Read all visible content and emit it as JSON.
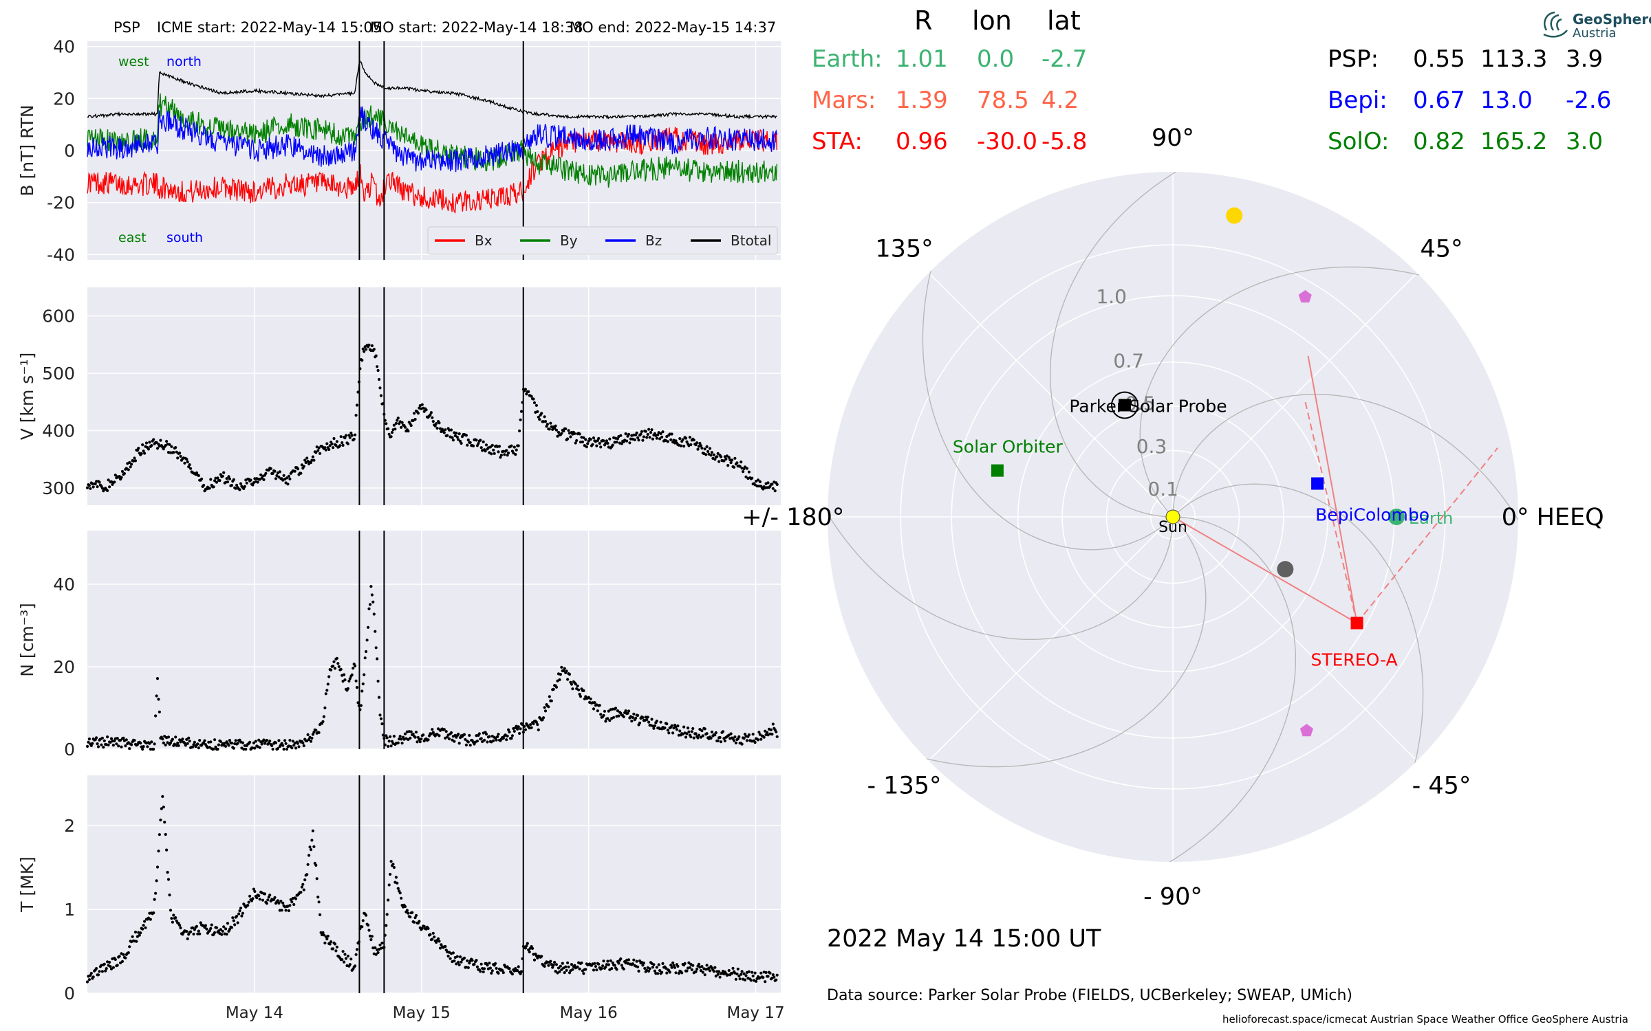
{
  "header": {
    "spacecraft": "PSP",
    "icme_start": "ICME start: 2022-May-14 15:05",
    "mo_start": "MO start: 2022-May-14 18:38",
    "mo_end": "MO end: 2022-May-15 14:37"
  },
  "logo": {
    "line1": "GeoSphere",
    "line2": "Austria"
  },
  "position_table": {
    "columns": [
      "R",
      "lon",
      "lat"
    ],
    "left": [
      {
        "name": "Earth:",
        "R": "1.01",
        "lon": "0.0",
        "lat": "-2.7",
        "color": "#3cb371"
      },
      {
        "name": "Mars:",
        "R": "1.39",
        "lon": "78.5",
        "lat": "4.2",
        "color": "#ff6347"
      },
      {
        "name": "STA:",
        "R": "0.96",
        "lon": "-30.0",
        "lat": "-5.8",
        "color": "#ff0000"
      }
    ],
    "right": [
      {
        "name": "PSP:",
        "R": "0.55",
        "lon": "113.3",
        "lat": "3.9",
        "color": "#000000"
      },
      {
        "name": "Bepi:",
        "R": "0.67",
        "lon": "13.0",
        "lat": "-2.6",
        "color": "#0000ff"
      },
      {
        "name": "SolO:",
        "R": "0.82",
        "lon": "165.2",
        "lat": "3.0",
        "color": "#008000"
      }
    ]
  },
  "footer": {
    "timestamp": "2022 May 14  15:00 UT",
    "data_source": "Data source: Parker Solar Probe (FIELDS, UCBerkeley; SWEAP, UMich)",
    "credits": "helioforecast.space/icmecat   Austrian Space Weather Office   GeoSphere Austria"
  },
  "chart_data": [
    {
      "type": "line",
      "ylabel": "B [nT] RTN",
      "ylim": [
        -42,
        42
      ],
      "yticks": [
        -40,
        -20,
        0,
        20,
        40
      ],
      "xlim_days": [
        13.0,
        17.15
      ],
      "xticks": [
        {
          "label": "May 14",
          "x": 14
        },
        {
          "label": "May 15",
          "x": 15
        },
        {
          "label": "May 16",
          "x": 16
        },
        {
          "label": "May 17",
          "x": 17
        }
      ],
      "event_lines": [
        14.628,
        14.776,
        15.609
      ],
      "direction_labels": [
        {
          "text": "west",
          "color": "#008000"
        },
        {
          "text": "north",
          "color": "#0000ff"
        },
        {
          "text": "east",
          "color": "#008000"
        },
        {
          "text": "south",
          "color": "#0000ff"
        }
      ],
      "legend_position": "lower-right",
      "series": [
        {
          "name": "Bx",
          "color": "#ff0000",
          "x": [
            13.0,
            13.3,
            13.42,
            13.43,
            13.6,
            13.8,
            14.0,
            14.2,
            14.4,
            14.6,
            14.63,
            14.66,
            14.7,
            14.75,
            14.8,
            14.9,
            15.0,
            15.2,
            15.4,
            15.6,
            15.7,
            15.9,
            16.1,
            16.3,
            16.5,
            16.7,
            16.9,
            17.15
          ],
          "y": [
            -12,
            -13,
            -13,
            -14,
            -16,
            -14,
            -16,
            -13,
            -13,
            -15,
            -8,
            -18,
            -12,
            -20,
            -10,
            -16,
            -18,
            -20,
            -19,
            -16,
            -4,
            3,
            4,
            3,
            5,
            2,
            4,
            3
          ]
        },
        {
          "name": "By",
          "color": "#008000",
          "x": [
            13.0,
            13.2,
            13.42,
            13.43,
            13.6,
            13.8,
            14.0,
            14.2,
            14.4,
            14.6,
            14.63,
            14.7,
            14.78,
            14.9,
            15.0,
            15.2,
            15.4,
            15.6,
            15.7,
            15.9,
            16.1,
            16.3,
            16.5,
            16.7,
            16.9,
            17.15
          ],
          "y": [
            5,
            3,
            5,
            18,
            12,
            8,
            6,
            10,
            8,
            4,
            10,
            14,
            10,
            5,
            2,
            -2,
            -4,
            0,
            -5,
            -8,
            -10,
            -8,
            -6,
            -9,
            -8,
            -8
          ]
        },
        {
          "name": "Bz",
          "color": "#0000ff",
          "x": [
            13.0,
            13.2,
            13.42,
            13.43,
            13.6,
            13.8,
            14.0,
            14.2,
            14.4,
            14.6,
            14.63,
            14.7,
            14.78,
            14.9,
            15.0,
            15.2,
            15.4,
            15.6,
            15.7,
            15.9,
            16.1,
            16.3,
            16.5,
            16.7,
            16.9,
            17.15
          ],
          "y": [
            2,
            1,
            3,
            12,
            8,
            3,
            0,
            2,
            -2,
            0,
            14,
            8,
            4,
            -3,
            -4,
            -4,
            -2,
            0,
            6,
            5,
            4,
            6,
            3,
            5,
            4,
            4
          ]
        },
        {
          "name": "Btotal",
          "color": "#000000",
          "x": [
            13.0,
            13.2,
            13.42,
            13.43,
            13.6,
            13.8,
            14.0,
            14.2,
            14.4,
            14.6,
            14.63,
            14.66,
            14.72,
            14.78,
            14.9,
            15.0,
            15.2,
            15.4,
            15.6,
            15.7,
            15.9,
            16.1,
            16.3,
            16.5,
            16.7,
            16.9,
            17.15
          ],
          "y": [
            13,
            14,
            14,
            30,
            26,
            22,
            23,
            22,
            21,
            22,
            35,
            30,
            26,
            24,
            24,
            23,
            22,
            19,
            15,
            14,
            13,
            13,
            13,
            14,
            14,
            13,
            13
          ]
        }
      ]
    },
    {
      "type": "scatter",
      "ylabel": "V [km s⁻¹]",
      "ylim": [
        270,
        650
      ],
      "yticks": [
        300,
        400,
        500,
        600
      ],
      "event_lines": [
        14.628,
        14.776,
        15.609
      ],
      "series": [
        {
          "name": "",
          "color": "#000000",
          "x": [
            13.0,
            13.1,
            13.2,
            13.3,
            13.4,
            13.5,
            13.6,
            13.7,
            13.8,
            13.9,
            14.0,
            14.1,
            14.2,
            14.3,
            14.4,
            14.5,
            14.6,
            14.63,
            14.65,
            14.68,
            14.72,
            14.75,
            14.78,
            14.82,
            14.86,
            14.9,
            15.0,
            15.1,
            15.2,
            15.3,
            15.4,
            15.5,
            15.58,
            15.61,
            15.65,
            15.7,
            15.8,
            15.9,
            16.0,
            16.1,
            16.2,
            16.3,
            16.4,
            16.5,
            16.6,
            16.7,
            16.8,
            16.9,
            17.0,
            17.15
          ],
          "y": [
            310,
            300,
            320,
            360,
            380,
            370,
            340,
            300,
            320,
            305,
            310,
            330,
            315,
            340,
            370,
            380,
            390,
            500,
            540,
            550,
            540,
            480,
            420,
            390,
            420,
            400,
            440,
            410,
            390,
            380,
            370,
            360,
            370,
            480,
            460,
            430,
            400,
            390,
            380,
            375,
            385,
            390,
            395,
            385,
            380,
            365,
            350,
            340,
            310,
            300
          ]
        }
      ]
    },
    {
      "type": "scatter",
      "ylabel": "N [cm⁻³]",
      "ylim": [
        0,
        53
      ],
      "yticks": [
        0,
        20,
        40
      ],
      "event_lines": [
        14.628,
        14.776,
        15.609
      ],
      "series": [
        {
          "name": "",
          "color": "#000000",
          "x": [
            13.0,
            13.2,
            13.4,
            13.42,
            13.44,
            13.6,
            13.8,
            14.0,
            14.2,
            14.3,
            14.4,
            14.45,
            14.5,
            14.55,
            14.6,
            14.63,
            14.66,
            14.7,
            14.72,
            14.75,
            14.78,
            14.85,
            14.9,
            15.0,
            15.1,
            15.2,
            15.3,
            15.4,
            15.5,
            15.6,
            15.7,
            15.75,
            15.8,
            15.85,
            15.9,
            16.0,
            16.1,
            16.2,
            16.3,
            16.4,
            16.5,
            16.6,
            16.7,
            16.8,
            16.9,
            17.0,
            17.1,
            17.15
          ],
          "y": [
            2,
            1.5,
            0.5,
            17,
            2,
            1.5,
            1,
            1,
            0.8,
            1.5,
            5,
            18,
            22,
            15,
            20,
            8,
            20,
            40,
            30,
            10,
            2,
            2,
            3,
            3,
            4,
            3,
            2,
            3,
            3,
            5,
            6,
            10,
            15,
            20,
            16,
            12,
            8,
            9,
            7,
            6,
            5,
            4,
            4,
            3,
            2,
            3,
            5,
            3
          ]
        }
      ]
    },
    {
      "type": "scatter",
      "ylabel": "T [MK]",
      "ylim": [
        0,
        2.6
      ],
      "yticks": [
        0,
        1,
        2
      ],
      "event_lines": [
        14.628,
        14.776,
        15.609
      ],
      "series": [
        {
          "name": "",
          "color": "#000000",
          "x": [
            13.0,
            13.1,
            13.2,
            13.3,
            13.4,
            13.45,
            13.5,
            13.6,
            13.7,
            13.8,
            13.9,
            14.0,
            14.1,
            14.2,
            14.3,
            14.35,
            14.4,
            14.5,
            14.6,
            14.63,
            14.66,
            14.72,
            14.78,
            14.82,
            14.86,
            14.9,
            15.0,
            15.1,
            15.2,
            15.3,
            15.4,
            15.5,
            15.6,
            15.61,
            15.7,
            15.8,
            16.0,
            16.2,
            16.4,
            16.6,
            16.8,
            17.0,
            17.15
          ],
          "y": [
            0.2,
            0.3,
            0.4,
            0.7,
            1.0,
            2.4,
            0.9,
            0.7,
            0.8,
            0.7,
            0.9,
            1.2,
            1.1,
            1.0,
            1.3,
            1.9,
            0.7,
            0.5,
            0.3,
            0.7,
            1.0,
            0.5,
            0.6,
            1.6,
            1.2,
            1.0,
            0.8,
            0.6,
            0.4,
            0.35,
            0.3,
            0.3,
            0.25,
            0.6,
            0.4,
            0.3,
            0.3,
            0.35,
            0.3,
            0.3,
            0.25,
            0.2,
            0.2
          ]
        }
      ]
    },
    {
      "type": "scatter",
      "subtype": "polar",
      "radial_ticks": [
        "0.1",
        "0.3",
        "0.5",
        "0.7",
        "1.0"
      ],
      "radial_values": [
        0.1,
        0.3,
        0.5,
        0.7,
        1.0
      ],
      "rmax": 1.56,
      "angle_labels": [
        {
          "text": "0° HEEQ",
          "deg": 0
        },
        {
          "text": "45°",
          "deg": 45
        },
        {
          "text": "90°",
          "deg": 90
        },
        {
          "text": "135°",
          "deg": 135
        },
        {
          "text": "+/- 180°",
          "deg": 180
        },
        {
          "text": "- 135°",
          "deg": -135
        },
        {
          "text": "- 90°",
          "deg": -90
        },
        {
          "text": "- 45°",
          "deg": -45
        }
      ],
      "bodies": [
        {
          "name": "Sun",
          "r": 0.0,
          "lon": 0,
          "color": "#ffff00",
          "marker": "circle"
        },
        {
          "name": "Earth",
          "r": 1.01,
          "lon": 0.0,
          "color": "#3cb371",
          "marker": "circle"
        },
        {
          "name": "",
          "r": 1.39,
          "lon": 78.5,
          "color": "#ffd700",
          "marker": "circle"
        },
        {
          "name": "",
          "r": 0.56,
          "lon": -25,
          "color": "#606060",
          "marker": "circle"
        },
        {
          "name": "Parker Solar Probe",
          "r": 0.55,
          "lon": 113.3,
          "color": "#000000",
          "marker": "square"
        },
        {
          "name": "BepiColombo",
          "r": 0.67,
          "lon": 13.0,
          "color": "#0000ff",
          "marker": "square"
        },
        {
          "name": "Solar Orbiter",
          "r": 0.82,
          "lon": 165.2,
          "color": "#008000",
          "marker": "square"
        },
        {
          "name": "STEREO-A",
          "r": 0.96,
          "lon": -30.0,
          "color": "#ff0000",
          "marker": "square"
        },
        {
          "name": "",
          "r": 1.16,
          "lon": 59,
          "color": "#da70d6",
          "marker": "pentagon"
        },
        {
          "name": "",
          "r": 1.14,
          "lon": -58,
          "color": "#da70d6",
          "marker": "pentagon"
        }
      ]
    }
  ]
}
